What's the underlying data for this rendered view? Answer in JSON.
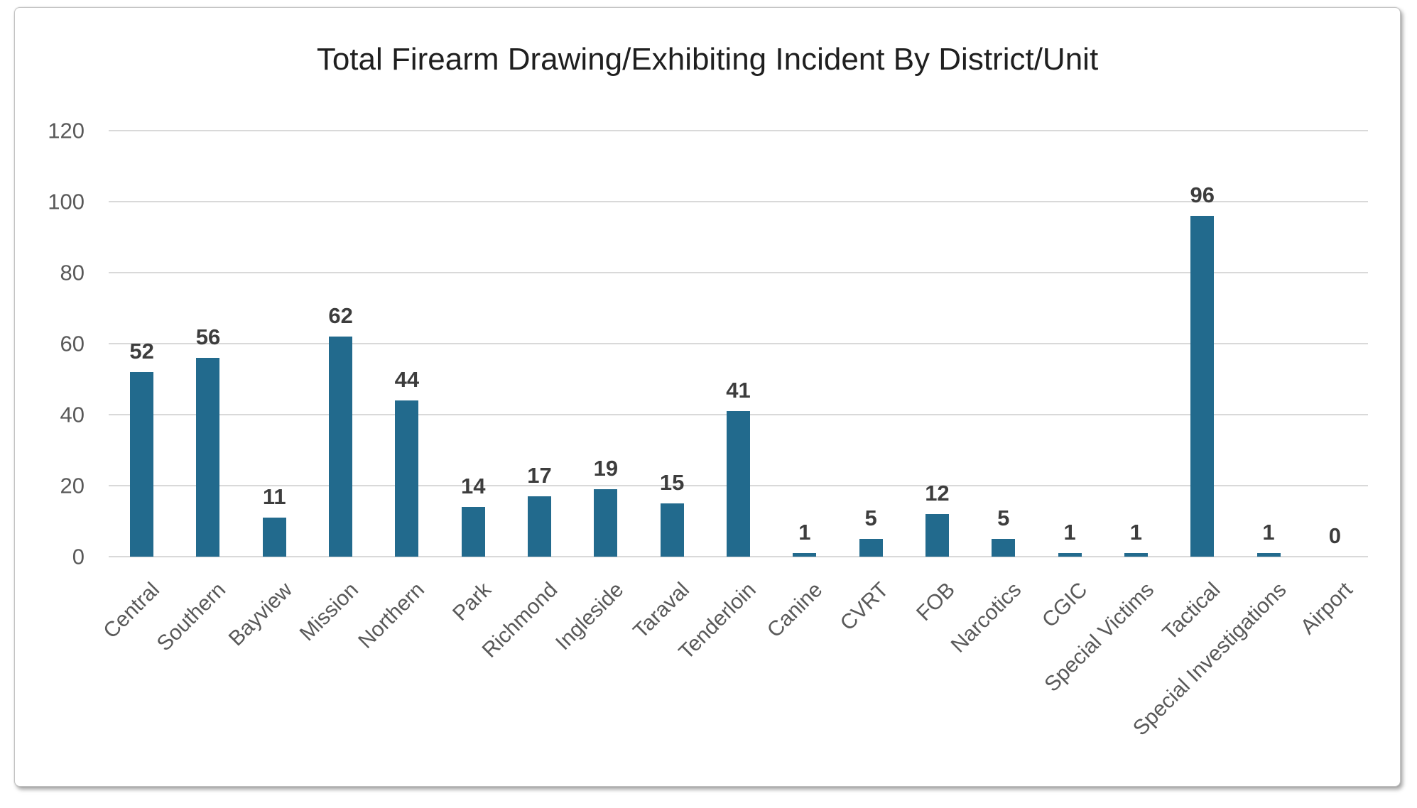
{
  "chart_data": {
    "type": "bar",
    "title": "Total Firearm Drawing/Exhibiting Incident By District/Unit",
    "categories": [
      "Central",
      "Southern",
      "Bayview",
      "Mission",
      "Northern",
      "Park",
      "Richmond",
      "Ingleside",
      "Taraval",
      "Tenderloin",
      "Canine",
      "CVRT",
      "FOB",
      "Narcotics",
      "CGIC",
      "Special Victims",
      "Tactical",
      "Special Investigations",
      "Airport"
    ],
    "values": [
      52,
      56,
      11,
      62,
      44,
      14,
      17,
      19,
      15,
      41,
      1,
      5,
      12,
      5,
      1,
      1,
      96,
      1,
      0
    ],
    "data_labels_shown": true,
    "xlabel": "",
    "ylabel": "",
    "ylim": [
      0,
      120
    ],
    "yticks": [
      0,
      20,
      40,
      60,
      80,
      100,
      120
    ],
    "grid": true,
    "legend": "none",
    "colors": {
      "bar": "#226a8d",
      "gridline": "#d9d9d9",
      "tick_label": "#595959",
      "data_label": "#3d3d3d",
      "title": "#1f1f1f"
    }
  }
}
